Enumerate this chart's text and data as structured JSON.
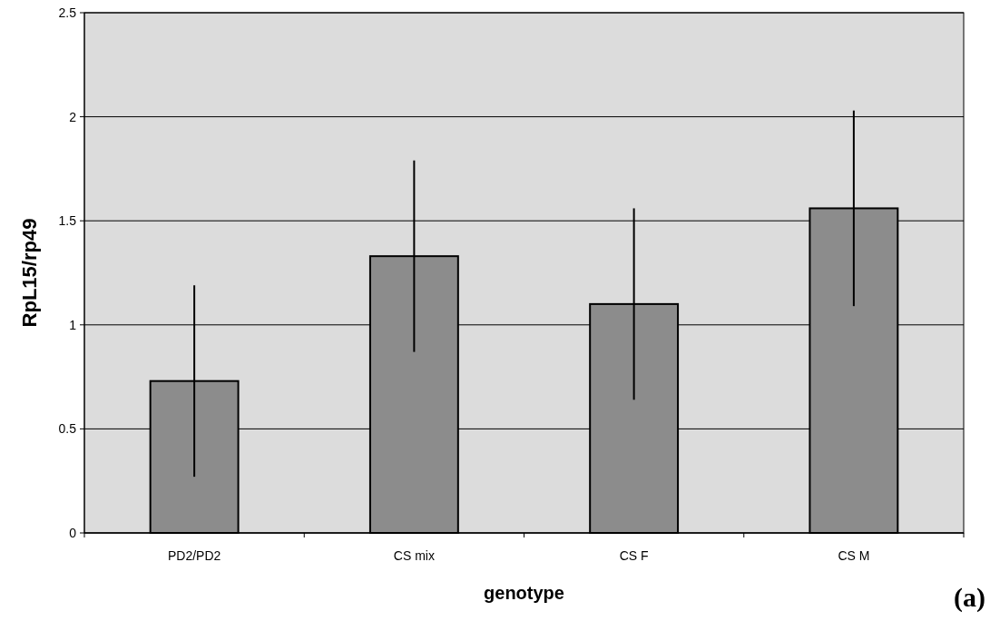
{
  "chart_data": {
    "type": "bar",
    "xlabel": "genotype",
    "ylabel": "RpL15/rp49",
    "categories": [
      "PD2/PD2",
      "CS mix",
      "CS F",
      "CS M"
    ],
    "values": [
      0.73,
      1.33,
      1.1,
      1.56
    ],
    "errors": [
      0.46,
      0.46,
      0.46,
      0.47
    ],
    "color": "#8c8c8c",
    "ylim": [
      0,
      2.5
    ],
    "yticks": [
      0,
      0.5,
      1,
      1.5,
      2,
      2.5
    ],
    "grid": "y",
    "annotations": [
      "(a)"
    ]
  }
}
